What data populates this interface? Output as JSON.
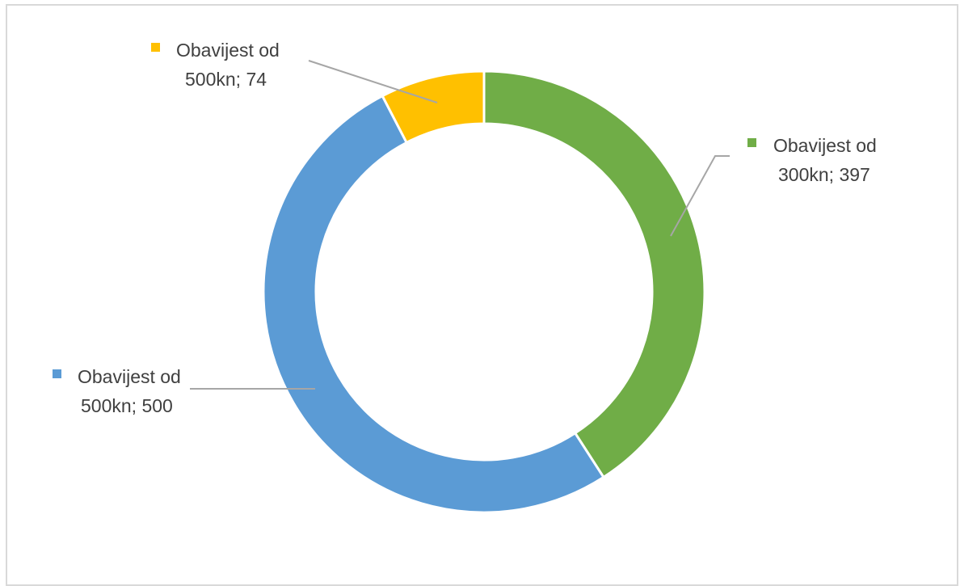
{
  "chart_data": {
    "type": "pie",
    "variant": "doughnut",
    "series": [
      {
        "name": "",
        "slices": [
          {
            "label": "Obavijest od 300kn",
            "value": 397,
            "color": "#70AD47",
            "label_line1": "Obavijest od",
            "label_line2": "300kn; 397"
          },
          {
            "label": "Obavijest od 500kn",
            "value": 500,
            "color": "#5B9BD5",
            "label_line1": "Obavijest od",
            "label_line2": "500kn; 500"
          },
          {
            "label": "Obavijest od 500kn",
            "value": 74,
            "color": "#FFC000",
            "label_line1": "Obavijest od",
            "label_line2": "500kn; 74"
          }
        ]
      }
    ],
    "start_angle": "top (12 o'clock), clockwise",
    "legend": "none",
    "data_labels": "outside with leader lines, legend key markers"
  }
}
